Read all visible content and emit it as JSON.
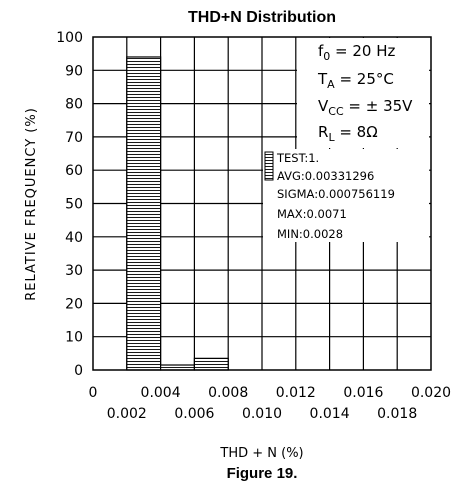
{
  "chart_data": {
    "type": "bar",
    "title": "THD+N Distribution",
    "xlabel": "THD + N  (%)",
    "ylabel": "RELATIVE FREQUENCY  (%)",
    "caption": "Figure 19.",
    "xlim": [
      0,
      0.02
    ],
    "ylim": [
      0,
      100
    ],
    "x_ticks_top": [
      "0",
      "0.004",
      "0.008",
      "0.012",
      "0.016",
      "0.020"
    ],
    "x_ticks_bottom": [
      "0.002",
      "0.006",
      "0.010",
      "0.014",
      "0.018"
    ],
    "y_ticks": [
      "0",
      "10",
      "20",
      "30",
      "40",
      "50",
      "60",
      "70",
      "80",
      "90",
      "100"
    ],
    "bars": [
      {
        "x0": 0.002,
        "x1": 0.004,
        "value": 94
      },
      {
        "x0": 0.004,
        "x1": 0.006,
        "value": 1.5
      },
      {
        "x0": 0.006,
        "x1": 0.008,
        "value": 3.5
      }
    ],
    "conditions": {
      "f0": "f",
      "f0_sub": "0",
      "f0_val": " = 20 Hz",
      "ta": "T",
      "ta_sub": "A",
      "ta_val": " = 25°C",
      "vcc": "V",
      "vcc_sub": "CC",
      "vcc_val": " = ± 35V",
      "rl": "R",
      "rl_sub": "L",
      "rl_val": " =  8Ω"
    },
    "stats": {
      "test": "TEST:1.",
      "avg": "AVG:0.00331296",
      "sigma": "SIGMA:0.000756119",
      "max": "MAX:0.0071",
      "min": "MIN:0.0028"
    },
    "grid": true
  }
}
